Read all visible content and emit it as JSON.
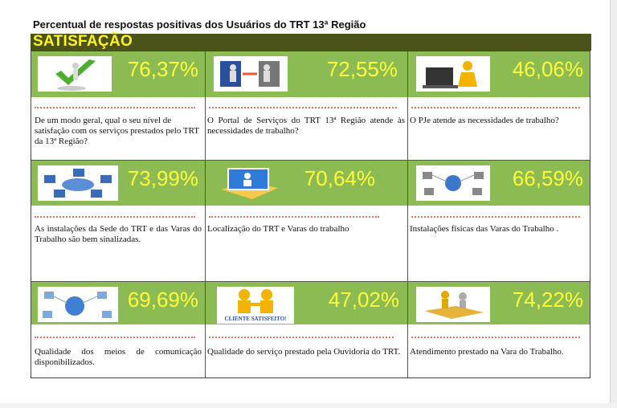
{
  "title": "Percentual de respostas positivas dos Usuários do TRT 13ª Região",
  "section": "SATISFAÇÃO",
  "colors": {
    "header_bg": "#4b5318",
    "header_text": "#fdf42b",
    "cell_green": "#8dbb53",
    "percent_text": "#fefc3c"
  },
  "cards": [
    {
      "icon": "checkmark-person-icon",
      "percent": "76,37%",
      "question": "De um modo geral, qual o seu nível de satisfação com os serviços prestados pelo TRT da 13ª Região?"
    },
    {
      "icon": "portal-door-icon",
      "percent": "72,55%",
      "question": "O Portal de Serviços do TRT 13ª Região atende às necessidades de trabalho?"
    },
    {
      "icon": "laptop-person-icon",
      "percent": "46,06%",
      "question": "O PJe atende as necessidades de trabalho?"
    },
    {
      "icon": "network-computers-icon",
      "percent": "73,99%",
      "question": "As instalações da Sede do TRT e das Varas do Trabalho são bem sinalizadas."
    },
    {
      "icon": "map-pin-icon",
      "percent": "70,64%",
      "question": "Localização do TRT e Varas do trabalho"
    },
    {
      "icon": "network-globe-icon",
      "percent": "66,59%",
      "question": "Instalações físicas das Varas do Trabalho ."
    },
    {
      "icon": "communication-network-icon",
      "percent": "69,69%",
      "question": "Qualidade dos meios de comunicação disponibilizados."
    },
    {
      "icon": "client-satisfied-icon",
      "percent": "47,02%",
      "question": "Qualidade do serviço prestado pela Ouvidoria do TRT.",
      "icon_caption": "CLIENTE SATISFEITO!"
    },
    {
      "icon": "puzzle-people-icon",
      "percent": "74,22%",
      "question": "Atendimento prestado na Vara do Trabalho."
    }
  ]
}
